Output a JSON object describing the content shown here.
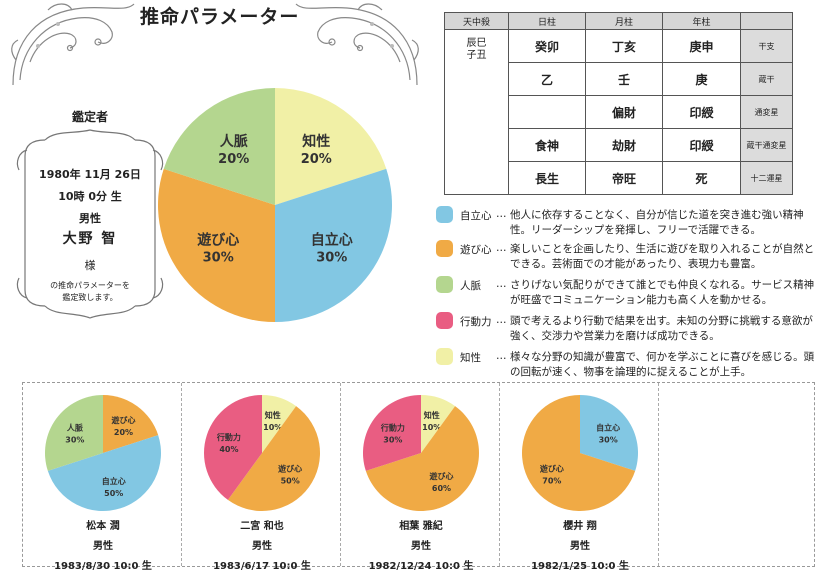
{
  "title": "推命パラメーター",
  "colors": {
    "jiritsu": "#82c7e3",
    "asobi": "#f0aa45",
    "jinmyaku": "#b4d68f",
    "kodo": "#e95d82",
    "chisei": "#f1f0a6"
  },
  "profile": {
    "heading": "鑑定者",
    "birth_date": "1980年 11月 26日",
    "birth_time": "10時 0分 生",
    "sex": "男性",
    "name": "大野 智",
    "honorific": "様",
    "note_line1": "の推命パラメーターを",
    "note_line2": "鑑定致します。"
  },
  "table": {
    "headers": [
      "天中殺",
      "日柱",
      "月柱",
      "年柱",
      ""
    ],
    "tenchu_line1": "辰巳",
    "tenchu_line2": "子丑",
    "rows": [
      {
        "day": "癸卯",
        "month": "丁亥",
        "year": "庚申",
        "label": "干支"
      },
      {
        "day": "乙",
        "month": "壬",
        "year": "庚",
        "label": "蔵干"
      },
      {
        "day": "",
        "month": "偏財",
        "year": "印綬",
        "label": "通変星"
      },
      {
        "day": "食神",
        "month": "劫財",
        "year": "印綬",
        "label": "蔵干通変星"
      },
      {
        "day": "長生",
        "month": "帝旺",
        "year": "死",
        "label": "十二運星"
      }
    ]
  },
  "legend": [
    {
      "name": "自立心",
      "color": "#82c7e3",
      "desc": "他人に依存することなく、自分が信じた道を突き進む強い精神性。リーダーシップを発揮し、フリーで活躍できる。"
    },
    {
      "name": "遊び心",
      "color": "#f0aa45",
      "desc": "楽しいことを企画したり、生活に遊びを取り入れることが自然とできる。芸術面での才能があったり、表現力も豊富。"
    },
    {
      "name": "人脈",
      "color": "#b4d68f",
      "desc": "さりげない気配りができて誰とでも仲良くなれる。サービス精神が旺盛でコミュニケーション能力も高く人を動かせる。"
    },
    {
      "name": "行動力",
      "color": "#e95d82",
      "desc": "頭で考えるより行動で結果を出す。未知の分野に挑戦する意欲が強く、交渉力や営業力を磨けば成功できる。"
    },
    {
      "name": "知性",
      "color": "#f1f0a6",
      "desc": "様々な分野の知識が豊富で、何かを学ぶことに喜びを感じる。頭の回転が速く、物事を論理的に捉えることが上手。"
    }
  ],
  "legend_dots": "…",
  "chart_data": [
    {
      "type": "pie",
      "title": "",
      "slices": [
        {
          "label": "知性",
          "value": 20,
          "color": "#f1f0a6",
          "text": "20%"
        },
        {
          "label": "自立心",
          "value": 30,
          "color": "#82c7e3",
          "text": "30%"
        },
        {
          "label": "遊び心",
          "value": 30,
          "color": "#f0aa45",
          "text": "30%"
        },
        {
          "label": "人脈",
          "value": 20,
          "color": "#b4d68f",
          "text": "20%"
        }
      ]
    },
    {
      "type": "pie",
      "title": "",
      "name": "松本 潤",
      "sex": "男性",
      "birth": "1983/8/30 10:0 生",
      "slices": [
        {
          "label": "遊び心",
          "value": 20,
          "color": "#f0aa45",
          "text": "20%"
        },
        {
          "label": "自立心",
          "value": 50,
          "color": "#82c7e3",
          "text": "50%"
        },
        {
          "label": "人脈",
          "value": 30,
          "color": "#b4d68f",
          "text": "30%"
        }
      ]
    },
    {
      "type": "pie",
      "title": "",
      "name": "二宮 和也",
      "sex": "男性",
      "birth": "1983/6/17 10:0 生",
      "slices": [
        {
          "label": "知性",
          "value": 10,
          "color": "#f1f0a6",
          "text": "10%"
        },
        {
          "label": "遊び心",
          "value": 50,
          "color": "#f0aa45",
          "text": "50%"
        },
        {
          "label": "行動力",
          "value": 40,
          "color": "#e95d82",
          "text": "40%"
        }
      ]
    },
    {
      "type": "pie",
      "title": "",
      "name": "相葉 雅紀",
      "sex": "男性",
      "birth": "1982/12/24 10:0 生",
      "slices": [
        {
          "label": "知性",
          "value": 10,
          "color": "#f1f0a6",
          "text": "10%"
        },
        {
          "label": "遊び心",
          "value": 60,
          "color": "#f0aa45",
          "text": "60%"
        },
        {
          "label": "行動力",
          "value": 30,
          "color": "#e95d82",
          "text": "30%"
        }
      ]
    },
    {
      "type": "pie",
      "title": "",
      "name": "櫻井 翔",
      "sex": "男性",
      "birth": "1982/1/25 10:0 生",
      "slices": [
        {
          "label": "自立心",
          "value": 30,
          "color": "#82c7e3",
          "text": "30%"
        },
        {
          "label": "遊び心",
          "value": 70,
          "color": "#f0aa45",
          "text": "70%"
        }
      ]
    }
  ]
}
